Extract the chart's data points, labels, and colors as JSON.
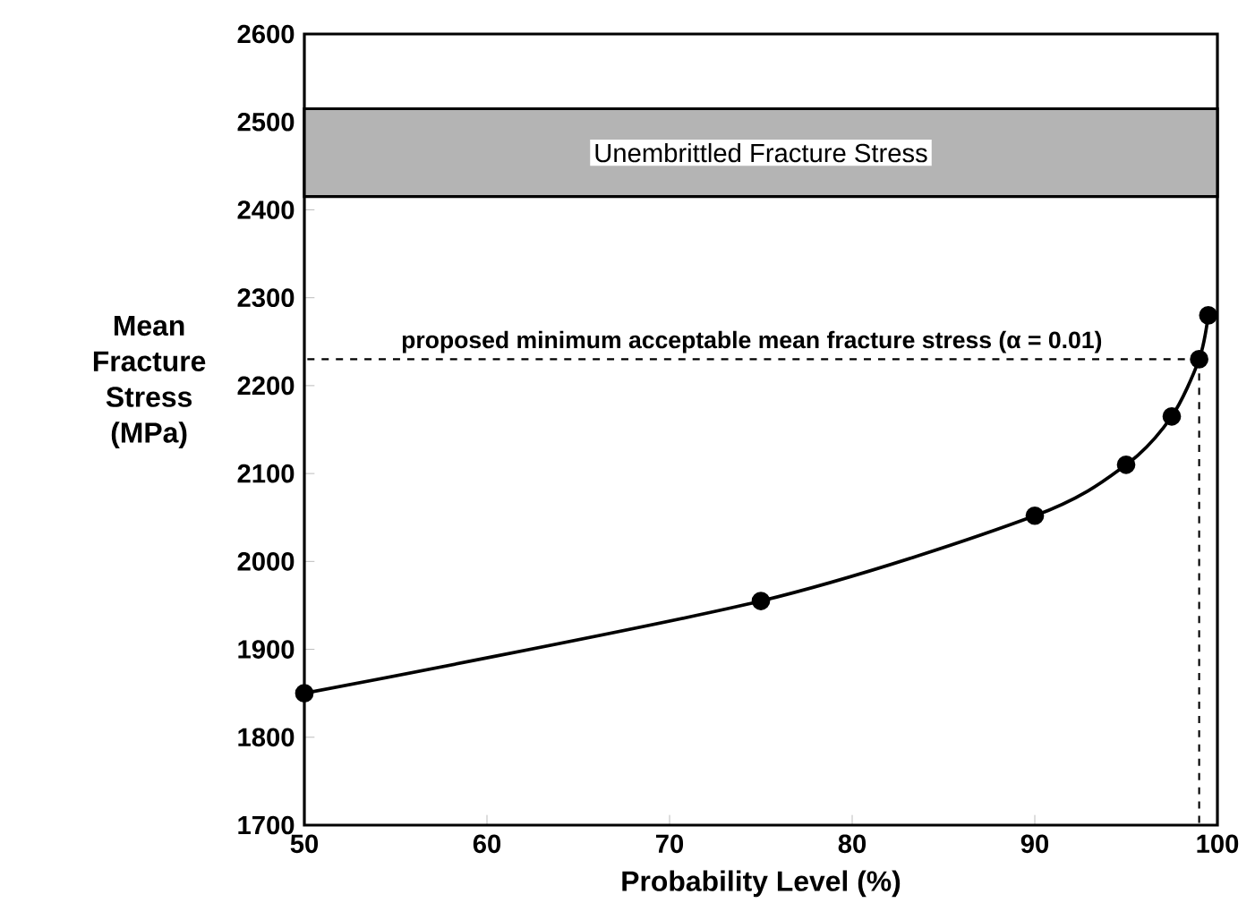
{
  "chart_data": {
    "type": "line",
    "xlabel": "Probability Level (%)",
    "ylabel": "Mean Fracture Stress (MPa)",
    "x": [
      50,
      75,
      90,
      95,
      97.5,
      99,
      99.5
    ],
    "series": [
      {
        "color": "#000000",
        "values": [
          1850,
          1955,
          2052,
          2110,
          2165,
          2230,
          2280
        ]
      }
    ],
    "xlim": [
      50,
      100
    ],
    "xticks": [
      50,
      60,
      70,
      80,
      90,
      100
    ],
    "ylim": [
      1700,
      2600
    ],
    "yticks": [
      1700,
      1800,
      1900,
      2000,
      2100,
      2200,
      2300,
      2400,
      2500,
      2600
    ],
    "marker": "circle",
    "line_style": "solid",
    "grid": false,
    "annotations": [
      "proposed minimum acceptable mean fracture stress (α = 0.01)"
    ],
    "ref_lines": [
      {
        "axis": "y",
        "value": 2230,
        "line_style": "dashed"
      },
      {
        "axis": "x",
        "value": 99,
        "line_style": "dashed"
      }
    ],
    "bands": [
      {
        "axis": "y",
        "from": 2415,
        "to": 2515,
        "label": "Unembrittled Fracture Stress",
        "color": "#b4b4b4"
      }
    ]
  }
}
